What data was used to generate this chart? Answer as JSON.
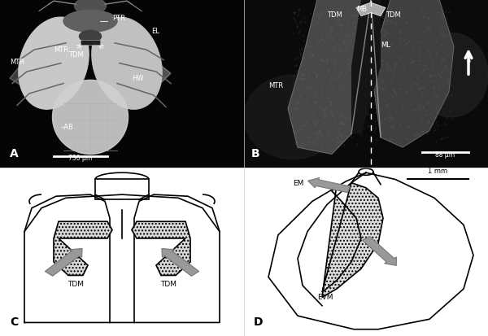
{
  "figure_width": 6.0,
  "figure_height": 4.14,
  "dpi": 100,
  "bg_color": "#ffffff",
  "scale_A": "750 μm",
  "scale_B": "88 μm",
  "scale_D": "1 mm",
  "gray_arrow_color": "#999999",
  "line_color": "#000000",
  "white_color": "#ffffff"
}
